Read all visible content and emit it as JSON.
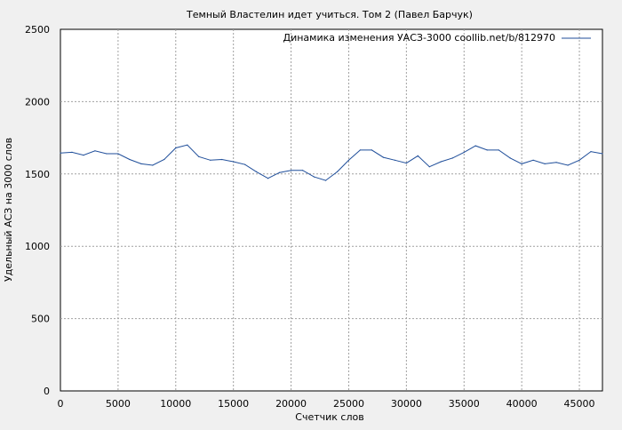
{
  "chart_data": {
    "type": "line",
    "title": "Темный Властелин идет учиться. Том  2 (Павел Барчук)",
    "xlabel": "Счетчик слов",
    "ylabel": "Удельный АСЗ на 3000 слов",
    "xlim": [
      0,
      47000
    ],
    "ylim": [
      0,
      2500
    ],
    "xticks": [
      0,
      5000,
      10000,
      15000,
      20000,
      25000,
      30000,
      35000,
      40000,
      45000
    ],
    "yticks": [
      0,
      500,
      1000,
      1500,
      2000,
      2500
    ],
    "grid": true,
    "legend_position": "top-right",
    "series": [
      {
        "name": "Динамика изменения УАСЗ-3000 coollib.net/b/812970",
        "color": "#1f4e9a",
        "x": [
          0,
          1000,
          2000,
          3000,
          4000,
          5000,
          6000,
          7000,
          8000,
          9000,
          10000,
          11000,
          12000,
          13000,
          14000,
          15000,
          16000,
          17000,
          18000,
          19000,
          20000,
          21000,
          22000,
          23000,
          24000,
          25000,
          26000,
          27000,
          28000,
          29000,
          30000,
          31000,
          32000,
          33000,
          34000,
          35000,
          36000,
          37000,
          38000,
          39000,
          40000,
          41000,
          42000,
          43000,
          44000,
          45000,
          46000,
          47000
        ],
        "y": [
          1645,
          1650,
          1630,
          1660,
          1640,
          1640,
          1600,
          1570,
          1560,
          1600,
          1680,
          1700,
          1620,
          1595,
          1600,
          1585,
          1565,
          1515,
          1470,
          1510,
          1525,
          1525,
          1480,
          1455,
          1515,
          1595,
          1665,
          1665,
          1615,
          1595,
          1575,
          1625,
          1550,
          1585,
          1610,
          1650,
          1695,
          1665,
          1665,
          1610,
          1570,
          1595,
          1570,
          1580,
          1560,
          1595,
          1655,
          1640
        ]
      }
    ]
  }
}
